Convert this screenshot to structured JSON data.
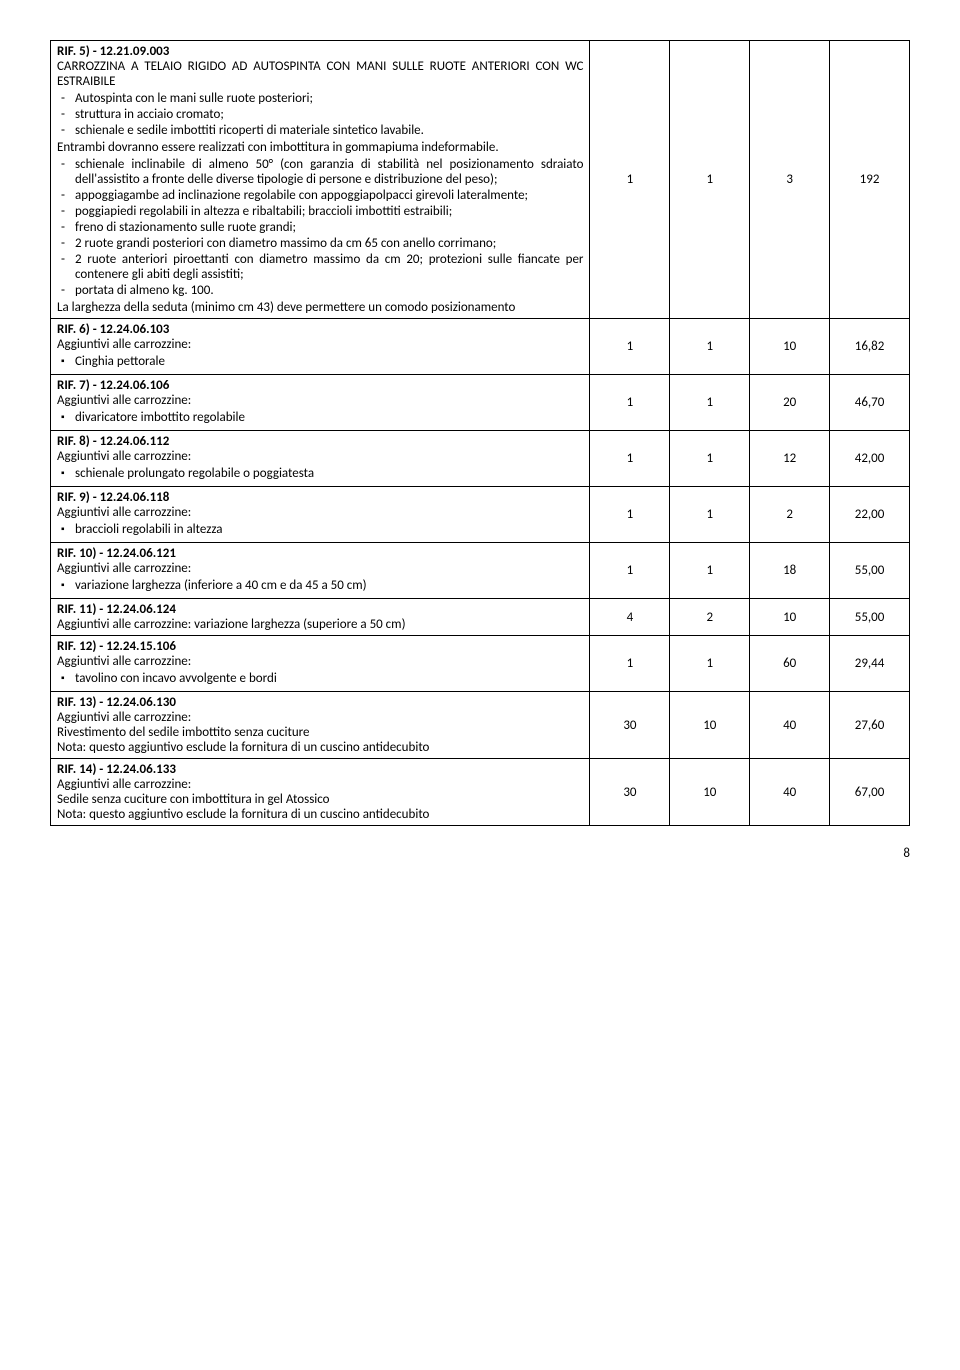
{
  "rows": [
    {
      "ref": "RIF. 5) - 12.21.09.003",
      "title": "CARROZZINA A TELAIO RIGIDO AD AUTOSPINTA CON MANI SULLE RUOTE ANTERIORI CON WC ESTRAIBILE",
      "dash1": [
        "Autospinta con le mani sulle ruote posteriori;",
        "struttura in acciaio cromato;",
        "schienale e sedile imbottiti ricoperti di materiale sintetico lavabile."
      ],
      "para": "Entrambi dovranno essere realizzati con imbottitura in gommapiuma indeformabile.",
      "dash2": [
        "schienale inclinabile di almeno 50° (con garanzia di stabilità nel posizionamento sdraiato dell'assistito a fronte delle diverse tipologie di persone e distribuzione del peso);",
        "appoggiagambe ad inclinazione regolabile con appoggiapolpacci girevoli lateralmente;",
        "poggiapiedi regolabili in altezza e ribaltabili; braccioli imbottiti estraibili;",
        "freno di stazionamento sulle ruote grandi;",
        "2 ruote grandi posteriori con diametro massimo da cm 65 con anello corrimano;",
        "2 ruote anteriori piroettanti con diametro massimo da cm 20; protezioni sulle fiancate per contenere gli abiti degli assistiti;",
        "portata di almeno kg. 100."
      ],
      "tail": "La larghezza della seduta (minimo cm 43) deve permettere un comodo posizionamento",
      "c1": "1",
      "c2": "1",
      "c3": "3",
      "c4": "192"
    },
    {
      "ref": "RIF. 6) - 12.24.06.103",
      "plain": "Aggiuntivi alle carrozzine:",
      "square": [
        "Cinghia pettorale"
      ],
      "c1": "1",
      "c2": "1",
      "c3": "10",
      "c4": "16,82"
    },
    {
      "ref": "RIF. 7) - 12.24.06.106",
      "plain": "Aggiuntivi alle carrozzine:",
      "square": [
        "divaricatore imbottito regolabile"
      ],
      "c1": "1",
      "c2": "1",
      "c3": "20",
      "c4": "46,70"
    },
    {
      "ref": "RIF. 8) - 12.24.06.112",
      "plain": "Aggiuntivi alle carrozzine:",
      "square": [
        "schienale prolungato regolabile o poggiatesta"
      ],
      "c1": "1",
      "c2": "1",
      "c3": "12",
      "c4": "42,00"
    },
    {
      "ref": "RIF. 9)  - 12.24.06.118",
      "plain": "Aggiuntivi alle carrozzine:",
      "square": [
        "braccioli regolabili in altezza"
      ],
      "c1": "1",
      "c2": "1",
      "c3": "2",
      "c4": "22,00"
    },
    {
      "ref": "RIF. 10) - 12.24.06.121",
      "plain": "Aggiuntivi alle carrozzine:",
      "square": [
        "variazione larghezza (inferiore a 40 cm e da 45 a 50 cm)"
      ],
      "c1": "1",
      "c2": "1",
      "c3": "18",
      "c4": "55,00"
    },
    {
      "ref": "RIF. 11) -  12.24.06.124",
      "plain": "Aggiuntivi alle carrozzine: variazione larghezza (superiore a 50 cm)",
      "c1": "4",
      "c2": "2",
      "c3": "10",
      "c4": "55,00"
    },
    {
      "ref": "RIF. 12) -  12.24.15.106",
      "plain": "Aggiuntivi alle carrozzine:",
      "square": [
        "tavolino con incavo avvolgente e bordi"
      ],
      "c1": "1",
      "c2": "1",
      "c3": "60",
      "c4": "29,44"
    },
    {
      "ref": "RIF. 13) -  12.24.06.130",
      "plain": "Aggiuntivi alle carrozzine:",
      "plain2": "Rivestimento del sedile imbottito senza cuciture",
      "plain3": "Nota: questo aggiuntivo esclude la fornitura di un cuscino antidecubito",
      "c1": "30",
      "c2": "10",
      "c3": "40",
      "c4": "27,60"
    },
    {
      "ref": "RIF. 14) -  12.24.06.133",
      "plain": "Aggiuntivi alle carrozzine:",
      "plain2": "Sedile senza cuciture con imbottitura in gel Atossico",
      "plain3": "Nota: questo aggiuntivo esclude la fornitura di un cuscino antidecubito",
      "c1": "30",
      "c2": "10",
      "c3": "40",
      "c4": "67,00"
    }
  ],
  "pageNumber": "8"
}
